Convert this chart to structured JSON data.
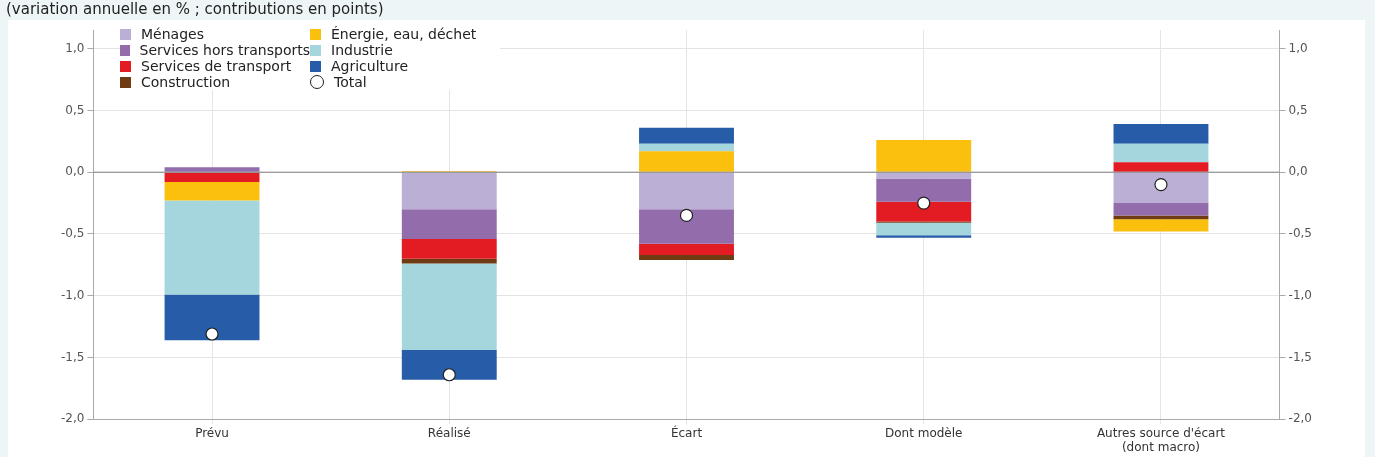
{
  "chart_data": {
    "type": "bar",
    "subtitle": "(variation annuelle en % ; contributions en points)",
    "categories": [
      "Prévu",
      "Réalisé",
      "Écart",
      "Dont modèle",
      "Autres source d'écart (dont macro)"
    ],
    "stacked": true,
    "series": [
      {
        "name": "Ménages",
        "color": "#bbafd5",
        "values": [
          null,
          -0.3,
          -0.3,
          -0.05,
          -0.25
        ]
      },
      {
        "name": "Services hors transports",
        "color": "#926cab",
        "values": [
          0.04,
          -0.24,
          -0.28,
          -0.19,
          -0.1
        ]
      },
      {
        "name": "Services de transport",
        "color": "#e31b23",
        "values": [
          -0.08,
          -0.16,
          -0.09,
          -0.16,
          0.08
        ]
      },
      {
        "name": "Construction",
        "color": "#6f3b12",
        "values": [
          null,
          -0.04,
          -0.04,
          -0.01,
          -0.03
        ]
      },
      {
        "name": "Énergie, eau, déchet",
        "color": "#fbbf0e",
        "values": [
          -0.15,
          0.01,
          0.17,
          0.26,
          -0.1
        ]
      },
      {
        "name": "Industrie",
        "color": "#a5d6dd",
        "values": [
          -0.76,
          -0.7,
          0.06,
          -0.1,
          0.15
        ]
      },
      {
        "name": "Agriculture",
        "color": "#265ca8",
        "values": [
          -0.37,
          -0.24,
          0.13,
          -0.02,
          0.16
        ]
      },
      {
        "name": "Total",
        "type": "scatter",
        "color": "#ffffff",
        "x": [
          "Prévu",
          "Réalisé",
          "Écart",
          "Dont modèle",
          "Autres source d'écart (dont macro)"
        ],
        "values": [
          -1.31,
          -1.64,
          -0.35,
          -0.25,
          -0.1
        ]
      }
    ],
    "ylim": [
      -2,
      1.15
    ],
    "yticks": [
      {
        "value": -2,
        "label": "-2,0"
      },
      {
        "value": -1.5,
        "label": "-1,5"
      },
      {
        "value": -1,
        "label": "-1,0"
      },
      {
        "value": -0.5,
        "label": "-0,5"
      },
      {
        "value": 0,
        "label": "0,0"
      },
      {
        "value": 0.5,
        "label": "0,5"
      },
      {
        "value": 1,
        "label": "1,0"
      }
    ],
    "y2lim": [
      -2,
      1.15
    ],
    "y2ticks": [
      {
        "value": -2,
        "label": "-2,0"
      },
      {
        "value": -1.5,
        "label": "-1,5"
      },
      {
        "value": -1,
        "label": "-1,0"
      },
      {
        "value": -0.5,
        "label": "-0,5"
      },
      {
        "value": 0,
        "label": "0,0"
      },
      {
        "value": 0.5,
        "label": "0,5"
      },
      {
        "value": 1,
        "label": "1,0"
      }
    ],
    "ref_lines": [
      {
        "axis": "y",
        "value": 0,
        "color": "#808080"
      }
    ],
    "grid": true,
    "legend": "top left",
    "marker": "circle"
  }
}
